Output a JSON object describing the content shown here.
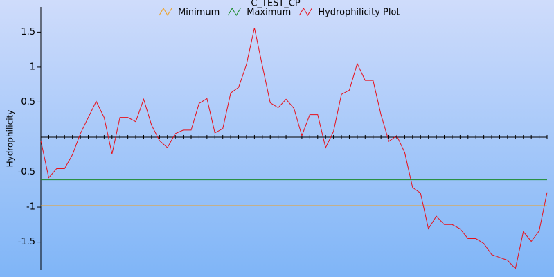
{
  "chart_data": {
    "type": "line",
    "title": "C_TEST_CP",
    "y_label": "Hydrophilicity",
    "ylim": [
      -1.9,
      1.86
    ],
    "yticks": [
      -1.5,
      -1,
      -0.5,
      0.5,
      1,
      1.5
    ],
    "reference_lines": [
      {
        "name": "Minimum",
        "color": "#f0a020",
        "value": -0.98
      },
      {
        "name": "Maximum",
        "color": "#1a8a2a",
        "value": -0.61
      }
    ],
    "series": [
      {
        "name": "Hydrophilicity Plot",
        "color": "#e8101a",
        "values": [
          -0.05,
          -0.58,
          -0.45,
          -0.45,
          -0.25,
          0.05,
          0.28,
          0.51,
          0.28,
          -0.24,
          0.28,
          0.28,
          0.22,
          0.54,
          0.17,
          -0.05,
          -0.15,
          0.05,
          0.1,
          0.1,
          0.48,
          0.55,
          0.06,
          0.12,
          0.63,
          0.71,
          1.04,
          1.56,
          1.02,
          0.49,
          0.42,
          0.54,
          0.41,
          0.02,
          0.32,
          0.32,
          -0.15,
          0.08,
          0.61,
          0.67,
          1.05,
          0.81,
          0.81,
          0.32,
          -0.06,
          0.02,
          -0.22,
          -0.72,
          -0.8,
          -1.31,
          -1.13,
          -1.25,
          -1.25,
          -1.31,
          -1.45,
          -1.45,
          -1.52,
          -1.68,
          -1.72,
          -1.76,
          -1.88,
          -1.35,
          -1.49,
          -1.34,
          -0.79
        ]
      }
    ]
  }
}
